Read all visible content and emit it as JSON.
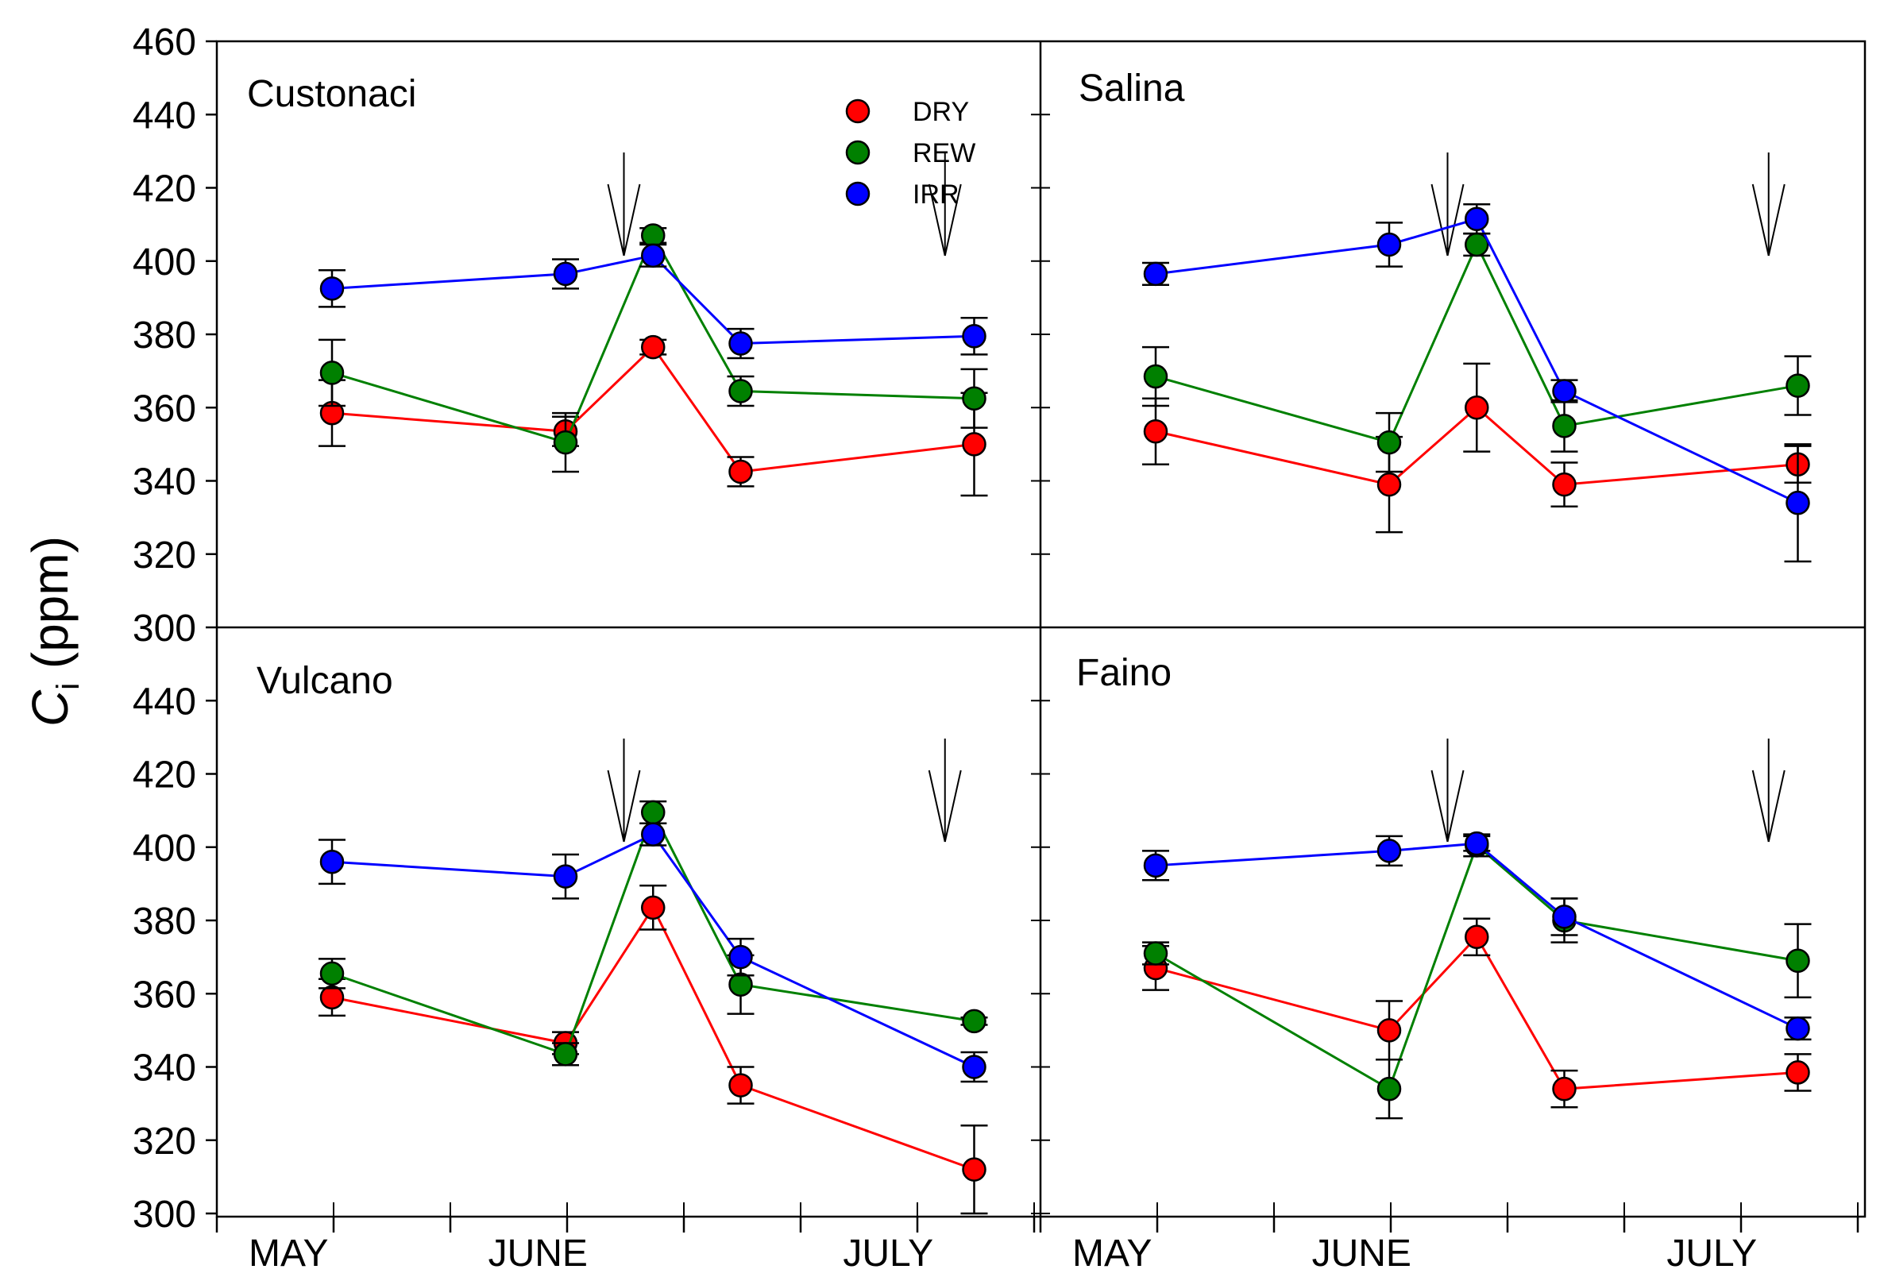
{
  "chart_data": {
    "type": "line",
    "ylabel": "C",
    "ylabel_subscript": "i",
    "ylabel_unit": " (ppm)",
    "ylim": [
      300,
      460
    ],
    "yticks_top": [
      300,
      320,
      340,
      360,
      380,
      400,
      420,
      440,
      460
    ],
    "yticks_bottom": [
      300,
      320,
      340,
      360,
      380,
      400,
      420,
      440
    ],
    "months": [
      "MAY",
      "JUNE",
      "JULY"
    ],
    "legend": [
      {
        "name": "DRY",
        "color": "#ff0000"
      },
      {
        "name": "REW",
        "color": "#008000"
      },
      {
        "name": "IRR",
        "color": "#0000ff"
      }
    ],
    "panels": [
      {
        "title": "Custonaci",
        "arrows_at": [
          3.5,
          6.25
        ],
        "series": [
          {
            "name": "DRY",
            "color": "#ff0000",
            "x": [
              1,
              3,
              3.75,
              4.5,
              6.5
            ],
            "values": [
              358.5,
              353.5,
              376.5,
              342.5,
              350
            ],
            "errors": [
              9,
              4,
              2,
              4,
              14
            ]
          },
          {
            "name": "REW",
            "color": "#008000",
            "x": [
              1,
              3,
              3.75,
              4.5,
              6.5
            ],
            "values": [
              369.5,
              350.5,
              407,
              364.5,
              362.5
            ],
            "errors": [
              9,
              8,
              2,
              4,
              8
            ]
          },
          {
            "name": "IRR",
            "color": "#0000ff",
            "x": [
              1,
              3,
              3.75,
              4.5,
              6.5
            ],
            "values": [
              392.5,
              396.5,
              401.5,
              377.5,
              379.5
            ],
            "errors": [
              5,
              4,
              3,
              4,
              5
            ]
          }
        ]
      },
      {
        "title": "Salina",
        "arrows_at": [
          3.5,
          6.25
        ],
        "series": [
          {
            "name": "DRY",
            "color": "#ff0000",
            "x": [
              1,
              3,
              3.75,
              4.5,
              6.5
            ],
            "values": [
              353.5,
              339,
              360,
              339,
              344.5
            ],
            "errors": [
              9,
              13,
              12,
              6,
              5
            ]
          },
          {
            "name": "REW",
            "color": "#008000",
            "x": [
              1,
              3,
              3.75,
              4.5,
              6.5
            ],
            "values": [
              368.5,
              350.5,
              404.5,
              355,
              366
            ],
            "errors": [
              8,
              8,
              3,
              7,
              8
            ]
          },
          {
            "name": "IRR",
            "color": "#0000ff",
            "x": [
              1,
              3,
              3.75,
              4.5,
              6.5
            ],
            "values": [
              396.5,
              404.5,
              411.5,
              364.5,
              334
            ],
            "errors": [
              3,
              6,
              4,
              3,
              16
            ]
          }
        ]
      },
      {
        "title": "Vulcano",
        "arrows_at": [
          3.5,
          6.25
        ],
        "series": [
          {
            "name": "DRY",
            "color": "#ff0000",
            "x": [
              1,
              3,
              3.75,
              4.5,
              6.5
            ],
            "values": [
              359,
              346.5,
              383.5,
              335,
              312
            ],
            "errors": [
              5,
              3,
              6,
              5,
              12
            ]
          },
          {
            "name": "REW",
            "color": "#008000",
            "x": [
              1,
              3,
              3.75,
              4.5,
              6.5
            ],
            "values": [
              365.5,
              343.5,
              409.5,
              362.5,
              352.5
            ],
            "errors": [
              4,
              3,
              3,
              8,
              1
            ]
          },
          {
            "name": "IRR",
            "color": "#0000ff",
            "x": [
              1,
              3,
              3.75,
              4.5,
              6.5
            ],
            "values": [
              396,
              392,
              403.5,
              370,
              340
            ],
            "errors": [
              6,
              6,
              3,
              5,
              4
            ]
          }
        ]
      },
      {
        "title": "Faino",
        "arrows_at": [
          3.5,
          6.25
        ],
        "series": [
          {
            "name": "DRY",
            "color": "#ff0000",
            "x": [
              1,
              3,
              3.75,
              4.5,
              6.5
            ],
            "values": [
              367,
              350,
              375.5,
              334,
              338.5
            ],
            "errors": [
              6,
              8,
              5,
              5,
              5
            ]
          },
          {
            "name": "REW",
            "color": "#008000",
            "x": [
              1,
              3,
              3.75,
              4.5,
              6.5
            ],
            "values": [
              371,
              334,
              400.5,
              380,
              369
            ],
            "errors": [
              3,
              8,
              3,
              6,
              10
            ]
          },
          {
            "name": "IRR",
            "color": "#0000ff",
            "x": [
              1,
              3,
              3.75,
              4.5,
              6.5
            ],
            "values": [
              395,
              399,
              401,
              381,
              350.5
            ],
            "errors": [
              4,
              4,
              2,
              5,
              3
            ]
          }
        ]
      }
    ]
  }
}
